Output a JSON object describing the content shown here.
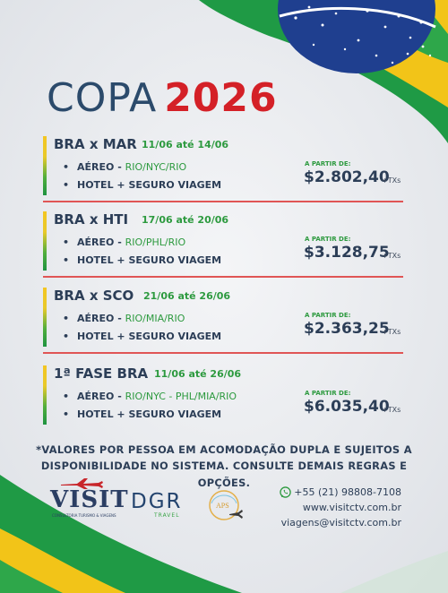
{
  "title": {
    "word": "COPA",
    "year": "2026"
  },
  "packages": [
    {
      "name": "BRA x MAR",
      "dates": "11/06 até 14/06",
      "air_label": "AÉREO - ",
      "air_route": "RIO/NYC/RIO",
      "hotel_label": "HOTEL + SEGURO VIAGEM",
      "from_label": "A PARTIR DE:",
      "price": "$2.802,40",
      "taxes": "+TXs"
    },
    {
      "name": "BRA x HTI",
      "dates": "17/06 até 20/06",
      "air_label": "AÉREO - ",
      "air_route": "RIO/PHL/RIO",
      "hotel_label": "HOTEL + SEGURO VIAGEM",
      "from_label": "A PARTIR DE:",
      "price": "$3.128,75",
      "taxes": "+TXs"
    },
    {
      "name": "BRA x SCO",
      "dates": "21/06 até 26/06",
      "air_label": "AÉREO - ",
      "air_route": "RIO/MIA/RIO",
      "hotel_label": "HOTEL + SEGURO VIAGEM",
      "from_label": "A PARTIR DE:",
      "price": "$2.363,25",
      "taxes": "+TXs"
    },
    {
      "name": "1ª FASE BRA",
      "dates": "11/06 até 26/06",
      "air_label": "AÉREO - ",
      "air_route": "RIO/NYC - PHL/MIA/RIO",
      "hotel_label": "HOTEL + SEGURO VIAGEM",
      "from_label": "A PARTIR DE:",
      "price": "$6.035,40",
      "taxes": "+TXs"
    }
  ],
  "disclaimer": {
    "line1": "*VALORES POR PESSOA EM ACOMODAÇÃO DUPLA E SUJEITOS A",
    "line2": "DISPONIBILIDADE  NO SISTEMA. CONSULTE DEMAIS REGRAS E OPÇÕES."
  },
  "logos": {
    "visit": {
      "word": "VISIT",
      "tagline": "CONSULTORIA TURISMO & VIAGENS"
    },
    "dgr": {
      "word": "DGR",
      "sub": "TRAVEL"
    },
    "aps": {
      "word": "APS"
    }
  },
  "contact": {
    "phone": "+55 (21) 98808-7108",
    "website": "www.visitctv.com.br",
    "email": "viagens@visitctv.com.br",
    "phone_icon": "whatsapp-icon"
  },
  "colors": {
    "title_dark": "#2b4a6b",
    "title_red": "#d42027",
    "green": "#2d9a3f",
    "yellow": "#f3c622",
    "flag_blue": "#1f3f8f",
    "divider_red": "#e05555"
  }
}
